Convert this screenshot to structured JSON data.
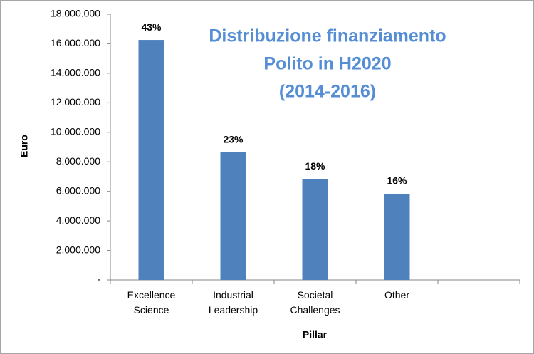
{
  "chart_data": {
    "type": "bar",
    "title": [
      "Distribuzione finanziamento",
      "Polito in H2020",
      "(2014-2016)"
    ],
    "xlabel": "Pillar",
    "ylabel": "Euro",
    "categories": [
      "Excellence Science",
      "Industrial Leadership",
      "Societal Challenges",
      "Other",
      null
    ],
    "values": [
      16260000,
      8640000,
      6850000,
      5840000,
      null
    ],
    "share_labels": [
      "43%",
      "23%",
      "18%",
      "16%",
      null
    ],
    "color": "#4f81bd",
    "ylim": [
      0,
      18000000
    ],
    "yticks": [
      {
        "value": 0,
        "label": "-"
      },
      {
        "value": 2000000,
        "label": "2.000.000"
      },
      {
        "value": 4000000,
        "label": "4.000.000"
      },
      {
        "value": 6000000,
        "label": "6.000.000"
      },
      {
        "value": 8000000,
        "label": "8.000.000"
      },
      {
        "value": 10000000,
        "label": "10.000.000"
      },
      {
        "value": 12000000,
        "label": "12.000.000"
      },
      {
        "value": 14000000,
        "label": "14.000.000"
      },
      {
        "value": 16000000,
        "label": "16.000.000"
      },
      {
        "value": 18000000,
        "label": "18.000.000"
      }
    ],
    "grid": false
  }
}
